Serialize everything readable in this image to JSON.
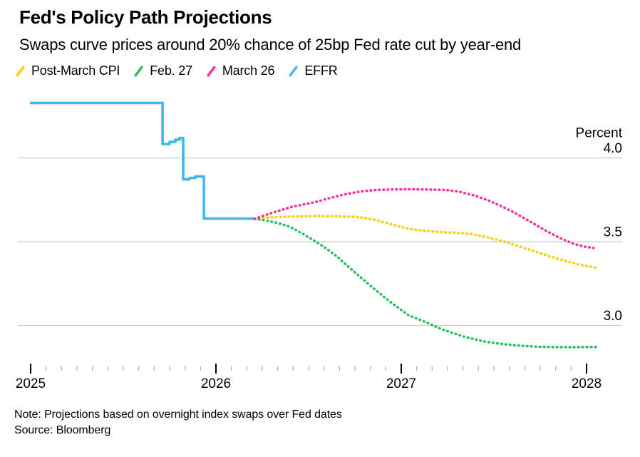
{
  "header": {
    "title": "Fed's Policy Path Projections",
    "subtitle": "Swaps curve prices around 20% chance of 25bp Fed rate cut by year-end"
  },
  "legend": [
    {
      "label": "Post-March CPI",
      "color": "#FFCC00"
    },
    {
      "label": "Feb. 27",
      "color": "#1EC15A"
    },
    {
      "label": "March 26",
      "color": "#F5309E"
    },
    {
      "label": "EFFR",
      "color": "#41B6E8"
    }
  ],
  "footer": {
    "note": "Note: Projections based on overnight index swaps over Fed dates",
    "source": "Source: Bloomberg"
  },
  "colors": {
    "background": "#FFFFFF",
    "text": "#000000",
    "gridline": "#CCCCCC",
    "axis_major_tick": "#000000",
    "axis_minor_tick": "#ABABAB",
    "effr_blue": "#41B6E8",
    "post_march_cpi_yellow": "#FFCC00",
    "feb27_green": "#1EC15A",
    "march26_pink": "#F5309E"
  },
  "chart_data": {
    "type": "line",
    "title": "Fed's Policy Path Projections",
    "subtitle": "Swaps curve prices around 20% chance of 25bp Fed rate cut by year-end",
    "xlabel": "",
    "ylabel": "Percent",
    "xlim": [
      2024.99,
      2028.3
    ],
    "ylim": [
      2.71,
      4.39
    ],
    "grid": "horizontal-only",
    "legend_position": "top-left",
    "yticks": [
      {
        "value": 4.0,
        "label": "4.0"
      },
      {
        "value": 3.5,
        "label": "3.5"
      },
      {
        "value": 3.0,
        "label": "3.0"
      }
    ],
    "xticks": [
      {
        "value": 2025,
        "label": "2025"
      },
      {
        "value": 2026,
        "label": "2026"
      },
      {
        "value": 2027,
        "label": "2027"
      },
      {
        "value": 2028,
        "label": "2028"
      }
    ],
    "x_minor_tick_step_years": 0.08333,
    "series": [
      {
        "name": "EFFR",
        "color": "#41B6E8",
        "line_style": "solid",
        "line_type": "step",
        "points": [
          [
            2024.996,
            4.328
          ],
          [
            2025.712,
            4.328
          ],
          [
            2025.712,
            4.083
          ],
          [
            2025.75,
            4.083
          ],
          [
            2025.75,
            4.096
          ],
          [
            2025.781,
            4.096
          ],
          [
            2025.781,
            4.109
          ],
          [
            2025.804,
            4.109
          ],
          [
            2025.804,
            4.119
          ],
          [
            2025.823,
            4.119
          ],
          [
            2025.823,
            3.872
          ],
          [
            2025.858,
            3.872
          ],
          [
            2025.858,
            3.881
          ],
          [
            2025.888,
            3.881
          ],
          [
            2025.888,
            3.889
          ],
          [
            2025.935,
            3.889
          ],
          [
            2025.935,
            3.638
          ],
          [
            2026.208,
            3.638
          ]
        ]
      },
      {
        "name": "Post-March CPI",
        "color": "#FFCC00",
        "line_style": "dotted",
        "line_type": "curve",
        "points": [
          [
            2026.208,
            3.636
          ],
          [
            2026.296,
            3.645
          ],
          [
            2026.412,
            3.651
          ],
          [
            2026.527,
            3.653
          ],
          [
            2026.642,
            3.653
          ],
          [
            2026.738,
            3.649
          ],
          [
            2026.796,
            3.643
          ],
          [
            2026.854,
            3.632
          ],
          [
            2026.912,
            3.615
          ],
          [
            2026.969,
            3.596
          ],
          [
            2027.027,
            3.581
          ],
          [
            2027.085,
            3.57
          ],
          [
            2027.142,
            3.564
          ],
          [
            2027.219,
            3.557
          ],
          [
            2027.296,
            3.553
          ],
          [
            2027.373,
            3.547
          ],
          [
            2027.45,
            3.53
          ],
          [
            2027.527,
            3.509
          ],
          [
            2027.585,
            3.491
          ],
          [
            2027.642,
            3.47
          ],
          [
            2027.719,
            3.443
          ],
          [
            2027.796,
            3.415
          ],
          [
            2027.873,
            3.389
          ],
          [
            2027.95,
            3.366
          ],
          [
            2028.008,
            3.353
          ],
          [
            2028.065,
            3.343
          ]
        ]
      },
      {
        "name": "Feb. 27",
        "color": "#1EC15A",
        "line_style": "dotted",
        "line_type": "curve",
        "points": [
          [
            2026.208,
            3.636
          ],
          [
            2026.265,
            3.628
          ],
          [
            2026.335,
            3.611
          ],
          [
            2026.4,
            3.589
          ],
          [
            2026.462,
            3.551
          ],
          [
            2026.527,
            3.509
          ],
          [
            2026.592,
            3.462
          ],
          [
            2026.654,
            3.411
          ],
          [
            2026.719,
            3.347
          ],
          [
            2026.785,
            3.283
          ],
          [
            2026.862,
            3.211
          ],
          [
            2026.938,
            3.143
          ],
          [
            2027.038,
            3.062
          ],
          [
            2027.142,
            3.015
          ],
          [
            2027.219,
            2.977
          ],
          [
            2027.335,
            2.934
          ],
          [
            2027.45,
            2.904
          ],
          [
            2027.546,
            2.889
          ],
          [
            2027.642,
            2.879
          ],
          [
            2027.758,
            2.872
          ],
          [
            2027.912,
            2.87
          ],
          [
            2028.054,
            2.872
          ]
        ]
      },
      {
        "name": "March 26",
        "color": "#F5309E",
        "line_style": "dotted",
        "line_type": "curve",
        "points": [
          [
            2026.208,
            3.636
          ],
          [
            2026.296,
            3.67
          ],
          [
            2026.412,
            3.709
          ],
          [
            2026.527,
            3.734
          ],
          [
            2026.604,
            3.757
          ],
          [
            2026.681,
            3.779
          ],
          [
            2026.758,
            3.796
          ],
          [
            2026.815,
            3.804
          ],
          [
            2026.873,
            3.809
          ],
          [
            2026.95,
            3.812
          ],
          [
            2027.046,
            3.813
          ],
          [
            2027.142,
            3.811
          ],
          [
            2027.238,
            3.809
          ],
          [
            2027.315,
            3.798
          ],
          [
            2027.392,
            3.777
          ],
          [
            2027.469,
            3.747
          ],
          [
            2027.546,
            3.709
          ],
          [
            2027.623,
            3.666
          ],
          [
            2027.7,
            3.617
          ],
          [
            2027.777,
            3.568
          ],
          [
            2027.854,
            3.523
          ],
          [
            2027.931,
            3.487
          ],
          [
            2027.988,
            3.47
          ],
          [
            2028.038,
            3.462
          ]
        ]
      }
    ]
  }
}
